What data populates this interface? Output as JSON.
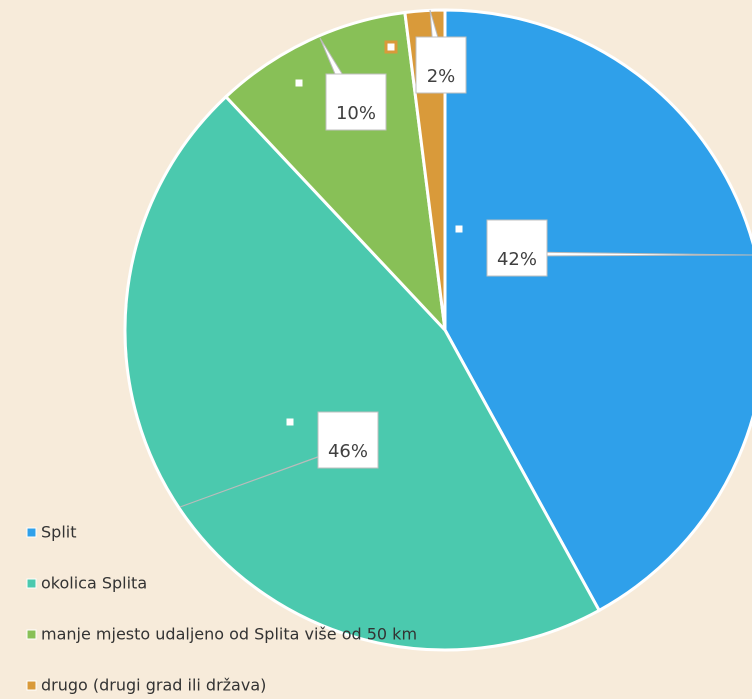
{
  "chart_data": {
    "type": "pie",
    "categories": [
      "Split",
      "okolica Splita",
      "manje mjesto udaljeno od Splita više od 50 km",
      "drugo (drugi grad ili država)"
    ],
    "values": [
      42,
      46,
      10,
      2
    ],
    "value_labels": [
      "42%",
      "46%",
      "10%",
      "2%"
    ],
    "colors": [
      "#2fa0ea",
      "#4bc9ae",
      "#88c057",
      "#d99a3a"
    ],
    "legend": "bottom-left"
  }
}
